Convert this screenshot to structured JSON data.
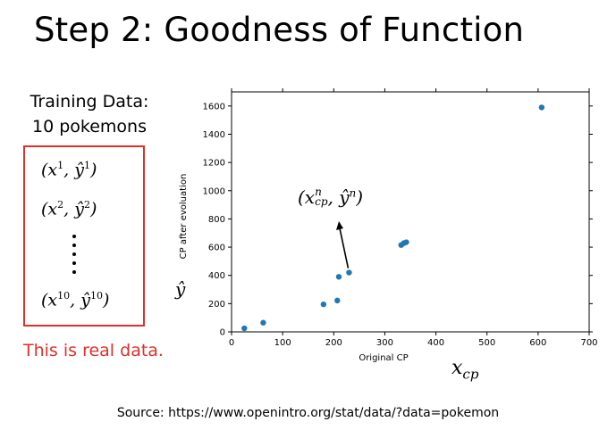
{
  "slide": {
    "title": "Step 2: Goodness of Function",
    "training_line1": "Training Data:",
    "training_line2": "10 pokemons",
    "pairs": [
      {
        "x": "(x",
        "sup1": "1",
        "mid": ", ŷ",
        "sup2": "1",
        "close": ")"
      },
      {
        "x": "(x",
        "sup1": "2",
        "mid": ", ŷ",
        "sup2": "2",
        "close": ")"
      },
      {
        "x": "(x",
        "sup1": "10",
        "mid": ", ŷ",
        "sup2": "10",
        "close": ")"
      }
    ],
    "real_note": "This is real data.",
    "source": "Source: https://www.openintro.org/stat/data/?data=pokemon",
    "yhat_label": "ŷ",
    "xcp_label_main": "x",
    "xcp_label_sub": "cp",
    "annotation": {
      "open": "(x",
      "sup1": "n",
      "sub1": "cp",
      "mid": ", ŷ",
      "sup2": "n",
      "close": ")"
    },
    "colors": {
      "accent_red": "#e0302a",
      "point_blue": "#1f77b4"
    }
  },
  "chart_data": {
    "type": "scatter",
    "xlabel": "Original CP",
    "ylabel": "CP after evoluation",
    "xlim": [
      0,
      700
    ],
    "ylim": [
      0,
      1700
    ],
    "xticks": [
      0,
      100,
      200,
      300,
      400,
      500,
      600,
      700
    ],
    "yticks": [
      0,
      200,
      400,
      600,
      800,
      1000,
      1200,
      1400,
      1600
    ],
    "points": [
      {
        "x": 25,
        "y": 25
      },
      {
        "x": 62,
        "y": 65
      },
      {
        "x": 180,
        "y": 195
      },
      {
        "x": 207,
        "y": 222
      },
      {
        "x": 210,
        "y": 390
      },
      {
        "x": 230,
        "y": 420
      },
      {
        "x": 332,
        "y": 615
      },
      {
        "x": 337,
        "y": 628
      },
      {
        "x": 342,
        "y": 635
      },
      {
        "x": 607,
        "y": 1590
      }
    ],
    "annotated_point_index": 5,
    "grid": false,
    "legend": "none"
  }
}
